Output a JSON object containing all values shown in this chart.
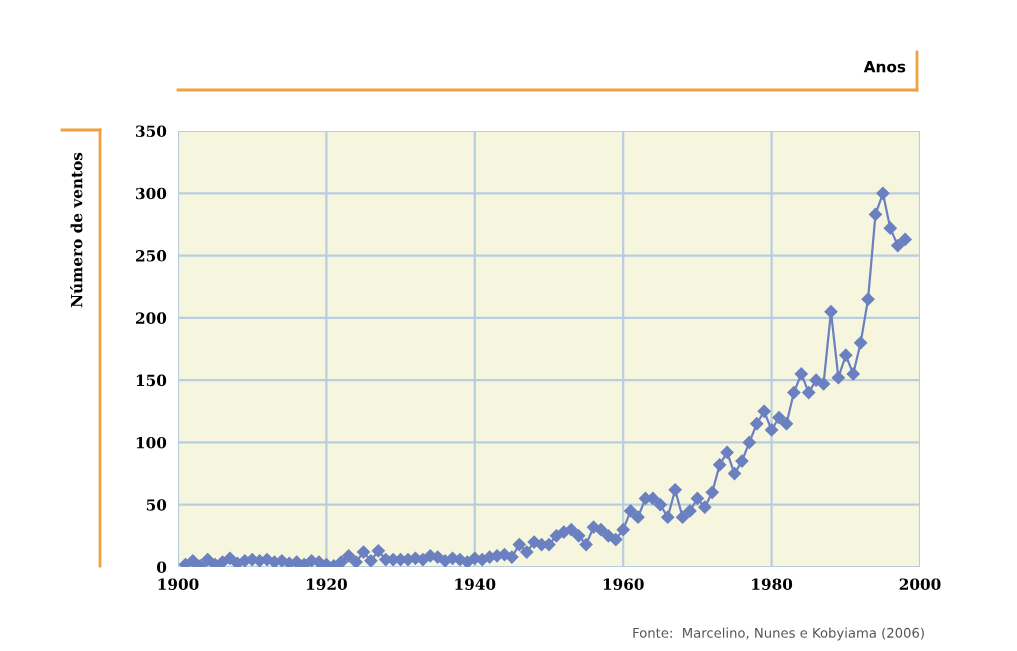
{
  "chart_data": {
    "type": "line",
    "xlabel": "Anos",
    "ylabel": "Número de ventos",
    "annotations": [
      "Fonte:  Marcelino, Nunes e Kobyiama (2006)"
    ],
    "x": [
      1901,
      1902,
      1903,
      1904,
      1905,
      1906,
      1907,
      1908,
      1909,
      1910,
      1911,
      1912,
      1913,
      1914,
      1915,
      1916,
      1917,
      1918,
      1919,
      1920,
      1921,
      1922,
      1923,
      1924,
      1925,
      1926,
      1927,
      1928,
      1929,
      1930,
      1931,
      1932,
      1933,
      1934,
      1935,
      1936,
      1937,
      1938,
      1939,
      1940,
      1941,
      1942,
      1943,
      1944,
      1945,
      1946,
      1947,
      1948,
      1949,
      1950,
      1951,
      1952,
      1953,
      1954,
      1955,
      1956,
      1957,
      1958,
      1959,
      1960,
      1961,
      1962,
      1963,
      1964,
      1965,
      1966,
      1967,
      1968,
      1969,
      1970,
      1971,
      1972,
      1973,
      1974,
      1975,
      1976,
      1977,
      1978,
      1979,
      1980,
      1981,
      1982,
      1983,
      1984,
      1985,
      1986,
      1987,
      1988,
      1989,
      1990,
      1991,
      1992,
      1993,
      1994,
      1995,
      1996,
      1997,
      1998
    ],
    "series": [
      {
        "color": "#6b80c0",
        "values": [
          2,
          5,
          1,
          6,
          2,
          4,
          7,
          3,
          5,
          6,
          5,
          6,
          4,
          5,
          3,
          4,
          2,
          5,
          4,
          2,
          1,
          4,
          9,
          4,
          12,
          5,
          13,
          6,
          6,
          6,
          6,
          7,
          6,
          9,
          8,
          5,
          7,
          6,
          4,
          7,
          6,
          8,
          9,
          10,
          8,
          18,
          12,
          20,
          18,
          18,
          25,
          28,
          30,
          25,
          18,
          32,
          30,
          25,
          22,
          30,
          45,
          40,
          55,
          55,
          50,
          40,
          62,
          40,
          45,
          55,
          48,
          60,
          82,
          92,
          75,
          85,
          100,
          115,
          125,
          110,
          120,
          115,
          140,
          155,
          140,
          150,
          147,
          205,
          152,
          170,
          155,
          180,
          215,
          283,
          300,
          272,
          258,
          263
        ]
      }
    ],
    "xlim": [
      1900,
      2000
    ],
    "xticks": [
      1900,
      1920,
      1940,
      1960,
      1980,
      2000
    ],
    "ylim": [
      0,
      350
    ],
    "yticks": [
      0,
      50,
      100,
      150,
      200,
      250,
      300,
      350
    ],
    "grid": true,
    "marker": "diamond",
    "line_style": "solid"
  }
}
